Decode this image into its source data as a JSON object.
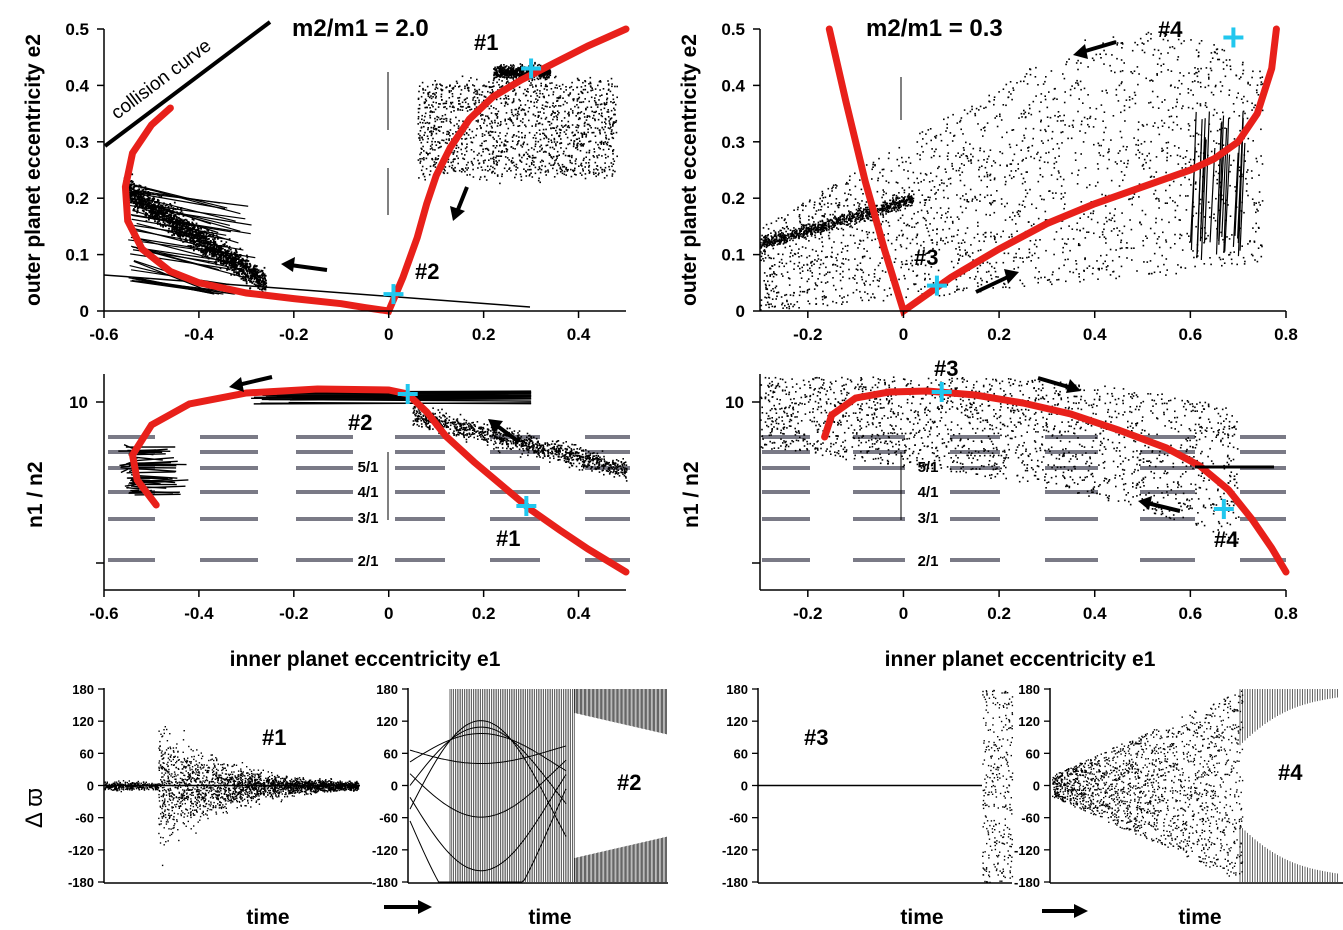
{
  "chart_data": [
    {
      "id": "A",
      "type": "scatter",
      "title": "m2/m1 = 2.0",
      "xlabel": "",
      "ylabel": "outer planet eccentricity e2",
      "xlim": [
        -0.6,
        0.5
      ],
      "ylim": [
        0,
        0.5
      ],
      "xticks": [
        "-0.6",
        "-0.4",
        "-0.2",
        "0",
        "0.2",
        "0.4"
      ],
      "yticks": [
        "0",
        "0.1",
        "0.2",
        "0.3",
        "0.4",
        "0.5"
      ],
      "annotation": "collision curve",
      "markers": [
        {
          "label": "#1",
          "x": 0.3,
          "y": 0.43
        },
        {
          "label": "#2",
          "x": 0.01,
          "y": 0.03
        }
      ],
      "red_curve": {
        "x": [
          -0.46,
          -0.5,
          -0.54,
          -0.555,
          -0.55,
          -0.52,
          -0.46,
          -0.4,
          -0.3,
          -0.2,
          -0.1,
          -0.05,
          0.0,
          0.03,
          0.06,
          0.08,
          0.1,
          0.13,
          0.17,
          0.22,
          0.28,
          0.35,
          0.42,
          0.5
        ],
        "y": [
          0.36,
          0.33,
          0.28,
          0.22,
          0.16,
          0.11,
          0.07,
          0.05,
          0.032,
          0.022,
          0.013,
          0.006,
          0.0,
          0.06,
          0.13,
          0.19,
          0.24,
          0.29,
          0.34,
          0.38,
          0.41,
          0.44,
          0.47,
          0.5
        ]
      }
    },
    {
      "id": "B",
      "type": "scatter",
      "title": "m2/m1 = 0.3",
      "xlabel": "",
      "ylabel": "outer planet eccentricity e2",
      "xlim": [
        -0.3,
        0.8
      ],
      "ylim": [
        0,
        0.5
      ],
      "xticks": [
        "-0.2",
        "0",
        "0.2",
        "0.4",
        "0.6",
        "0.8"
      ],
      "yticks": [
        "0",
        "0.1",
        "0.2",
        "0.3",
        "0.4",
        "0.5"
      ],
      "markers": [
        {
          "label": "#3",
          "x": 0.07,
          "y": 0.045
        },
        {
          "label": "#4",
          "x": 0.69,
          "y": 0.485
        }
      ],
      "red_curve": {
        "x": [
          -0.155,
          -0.12,
          -0.08,
          -0.04,
          0.0,
          0.05,
          0.1,
          0.2,
          0.3,
          0.4,
          0.5,
          0.6,
          0.65,
          0.7,
          0.74,
          0.77,
          0.78
        ],
        "y": [
          0.5,
          0.37,
          0.23,
          0.11,
          0.0,
          0.03,
          0.06,
          0.11,
          0.155,
          0.19,
          0.22,
          0.25,
          0.27,
          0.3,
          0.35,
          0.43,
          0.5
        ]
      }
    },
    {
      "id": "C",
      "type": "scatter",
      "xlabel": "inner planet eccentricity e1",
      "ylabel": "n1 / n2",
      "xlim": [
        -0.6,
        0.5
      ],
      "xticks": [
        "-0.6",
        "-0.4",
        "-0.2",
        "0",
        "0.2",
        "0.4"
      ],
      "yticks": [
        "10"
      ],
      "resonances": [
        "5/1",
        "4/1",
        "3/1",
        "2/1"
      ],
      "markers": [
        {
          "label": "#2",
          "x": 0.04,
          "y": 10.5
        },
        {
          "label": "#1",
          "x": 0.29,
          "y": 3.4
        }
      ]
    },
    {
      "id": "D",
      "type": "scatter",
      "xlabel": "inner planet eccentricity e1",
      "ylabel": "n1 / n2",
      "xlim": [
        -0.3,
        0.8
      ],
      "xticks": [
        "-0.2",
        "0",
        "0.2",
        "0.4",
        "0.6",
        "0.8"
      ],
      "yticks": [
        "10"
      ],
      "resonances": [
        "5/1",
        "4/1",
        "3/1",
        "2/1"
      ],
      "markers": [
        {
          "label": "#3",
          "x": 0.08,
          "y": 10.5
        },
        {
          "label": "#4",
          "x": 0.67,
          "y": 3.4
        }
      ]
    },
    {
      "id": "E1",
      "type": "scatter",
      "label": "#1",
      "xlabel": "time",
      "ylabel": "Δ ϖ",
      "ylim": [
        -180,
        180
      ],
      "yticks": [
        "180",
        "120",
        "60",
        "0",
        "-60",
        "-120",
        "-180"
      ]
    },
    {
      "id": "E2",
      "type": "scatter",
      "label": "#2",
      "xlabel": "time",
      "ylim": [
        -180,
        180
      ],
      "yticks": [
        "180",
        "120",
        "60",
        "0",
        "-60",
        "-120",
        "-180"
      ]
    },
    {
      "id": "E3",
      "type": "scatter",
      "label": "#3",
      "xlabel": "time",
      "ylim": [
        -180,
        180
      ],
      "yticks": [
        "180",
        "120",
        "60",
        "0",
        "-60",
        "-120",
        "-180"
      ]
    },
    {
      "id": "E4",
      "type": "scatter",
      "label": "#4",
      "xlabel": "time",
      "ylim": [
        -180,
        180
      ],
      "yticks": [
        "180",
        "120",
        "60",
        "0",
        "-60",
        "-120",
        "-180"
      ]
    }
  ],
  "colors": {
    "curve": "#e8201a",
    "marker": "#21c7ee",
    "points": "#000000",
    "resonance": "#7a7a86"
  }
}
